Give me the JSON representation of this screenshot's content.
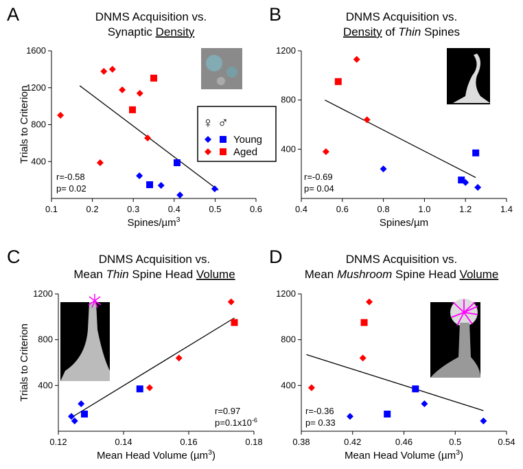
{
  "chart_data": [
    {
      "type": "scatter",
      "panel_label": "A",
      "title": [
        "DNMS Acquisition vs.",
        [
          {
            "text": "Synaptic "
          },
          {
            "text": "Density",
            "underline": true
          }
        ]
      ],
      "xlabel": [
        {
          "text": "Spines/µm"
        },
        {
          "text": "3",
          "sup": true
        }
      ],
      "ylabel": "Trials to Criterion",
      "xlim": [
        0.1,
        0.6
      ],
      "xticks": [
        0.1,
        0.2,
        0.3,
        0.4,
        0.5,
        0.6
      ],
      "ylim": [
        0,
        1600
      ],
      "yticks": [
        400,
        800,
        1200,
        1600
      ],
      "legend": true,
      "legend_header": [
        "♀",
        "♂"
      ],
      "series": [
        {
          "name": "Young",
          "color": "#0000ff",
          "female": {
            "x": [
              0.315,
              0.368,
              0.414,
              0.499
            ],
            "values": [
              246,
              141,
              37,
              104
            ]
          },
          "male": {
            "x": [
              0.34,
              0.407
            ],
            "values": [
              149,
              387
            ]
          }
        },
        {
          "name": "Aged",
          "color": "#ff0000",
          "female": {
            "x": [
              0.122,
              0.228,
              0.249,
              0.273,
              0.316,
              0.335,
              0.219
            ],
            "values": [
              901,
              1378,
              1400,
              1177,
              1140,
              655,
              387
            ]
          },
          "male": {
            "x": [
              0.298,
              0.35
            ],
            "values": [
              961,
              1304
            ]
          }
        }
      ],
      "trendline": {
        "x": [
          0.169,
          0.508
        ],
        "values": [
          1222,
          89
        ]
      },
      "annotations": [
        "r=-0.58",
        "p= 0.02"
      ]
    },
    {
      "type": "scatter",
      "panel_label": "B",
      "title": [
        "DNMS Acquisition vs.",
        [
          {
            "text": "Density",
            "underline": true
          },
          {
            "text": " of "
          },
          {
            "text": "Thin",
            "italic": true
          },
          {
            "text": " Spines"
          }
        ]
      ],
      "xlabel": [
        {
          "text": "Spines/µm"
        }
      ],
      "xlim": [
        0.4,
        1.4
      ],
      "xticks": [
        0.4,
        0.6,
        0.8,
        {
          "value": 1.0,
          "label": "1.0"
        },
        1.2,
        1.4
      ],
      "ylim": [
        0,
        1200
      ],
      "yticks": [
        400,
        800,
        1200
      ],
      "series": [
        {
          "color": "#0000ff",
          "female": {
            "x": [
              0.8,
              1.2,
              1.26
            ],
            "values": [
              240,
              130,
              90
            ]
          },
          "male": {
            "x": [
              1.18,
              1.25
            ],
            "values": [
              150,
              370
            ]
          }
        },
        {
          "color": "#ff0000",
          "female": {
            "x": [
              0.52,
              0.67,
              0.72
            ],
            "values": [
              380,
              1130,
              640
            ]
          },
          "male": {
            "x": [
              0.58
            ],
            "values": [
              950
            ]
          }
        }
      ],
      "trendline": {
        "x": [
          0.515,
          1.25
        ],
        "values": [
          800,
          170
        ]
      },
      "annotations": [
        "r=-0.69",
        "p= 0.04"
      ]
    },
    {
      "type": "scatter",
      "panel_label": "C",
      "title": [
        "DNMS Acquisition vs.",
        [
          {
            "text": "Mean "
          },
          {
            "text": "Thin",
            "italic": true
          },
          {
            "text": " Spine Head "
          },
          {
            "text": "Volume",
            "underline": true
          }
        ]
      ],
      "xlabel": [
        {
          "text": "Mean Head Volume (µm"
        },
        {
          "text": "3",
          "sup": true
        },
        {
          "text": ")"
        }
      ],
      "ylabel": "Trials to Criterion",
      "xlim": [
        0.12,
        0.18
      ],
      "xticks": [
        0.12,
        0.14,
        0.16,
        0.18
      ],
      "ylim": [
        0,
        1200
      ],
      "yticks": [
        400,
        800,
        1200
      ],
      "series": [
        {
          "color": "#0000ff",
          "female": {
            "x": [
              0.124,
              0.125,
              0.127
            ],
            "values": [
              130,
              90,
              240
            ]
          },
          "male": {
            "x": [
              0.128,
              0.145
            ],
            "values": [
              150,
              370
            ]
          }
        },
        {
          "color": "#ff0000",
          "female": {
            "x": [
              0.148,
              0.157,
              0.173
            ],
            "values": [
              380,
              640,
              1130
            ]
          },
          "male": {
            "x": [
              0.174
            ],
            "values": [
              950
            ]
          }
        }
      ],
      "trendline": {
        "x": [
          0.124,
          0.174
        ],
        "values": [
          120,
          990
        ]
      },
      "annotations": [
        "r=0.97",
        [
          {
            "text": "p=0.1x10"
          },
          {
            "text": "-6",
            "sup": true
          }
        ]
      ]
    },
    {
      "type": "scatter",
      "panel_label": "D",
      "title": [
        "DNMS Acquisition vs.",
        [
          {
            "text": "Mean "
          },
          {
            "text": "Mushroom",
            "italic": true
          },
          {
            "text": " Spine Head "
          },
          {
            "text": "Volume",
            "underline": true
          }
        ]
      ],
      "xlabel": [
        {
          "text": "Mean Head Volume (µm"
        },
        {
          "text": "3",
          "sup": true
        },
        {
          "text": ")"
        }
      ],
      "xlim": [
        0.38,
        0.54
      ],
      "xticks": [
        0.38,
        0.42,
        0.46,
        0.5,
        0.54
      ],
      "ylim": [
        0,
        1200
      ],
      "yticks": [
        400,
        800,
        1200
      ],
      "series": [
        {
          "color": "#0000ff",
          "female": {
            "x": [
              0.418,
              0.476,
              0.522
            ],
            "values": [
              130,
              240,
              90
            ]
          },
          "male": {
            "x": [
              0.447,
              0.469
            ],
            "values": [
              150,
              370
            ]
          }
        },
        {
          "color": "#ff0000",
          "female": {
            "x": [
              0.388,
              0.428,
              0.433
            ],
            "values": [
              380,
              640,
              1130
            ]
          },
          "male": {
            "x": [
              0.429
            ],
            "values": [
              950
            ]
          }
        }
      ],
      "trendline": {
        "x": [
          0.384,
          0.522
        ],
        "values": [
          670,
          180
        ]
      },
      "annotations": [
        "r=-0.36",
        "p= 0.33"
      ]
    }
  ]
}
